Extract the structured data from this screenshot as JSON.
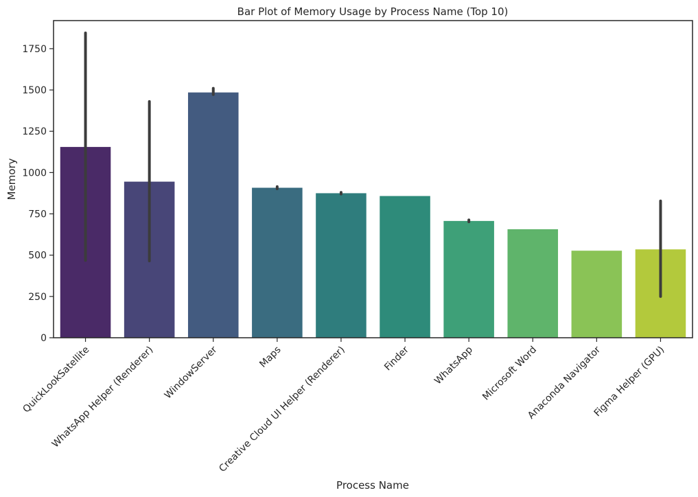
{
  "chart_data": {
    "type": "bar",
    "title": "Bar Plot of Memory Usage by Process Name (Top 10)",
    "xlabel": "Process Name",
    "ylabel": "Memory",
    "categories": [
      "QuickLookSatellite",
      "WhatsApp Helper (Renderer)",
      "WindowServer",
      "Maps",
      "Creative Cloud UI Helper (Renderer)",
      "Finder",
      "WhatsApp",
      "Microsoft Word",
      "Anaconda Navigator",
      "Figma Helper (GPU)"
    ],
    "values": [
      1155,
      945,
      1485,
      908,
      875,
      858,
      707,
      657,
      527,
      535
    ],
    "error_bars": [
      [
        468,
        1845
      ],
      [
        465,
        1430
      ],
      [
        1472,
        1510
      ],
      [
        902,
        915
      ],
      [
        870,
        880
      ],
      null,
      [
        702,
        713
      ],
      null,
      null,
      [
        250,
        828
      ]
    ],
    "colors": [
      "#4a2a67",
      "#484678",
      "#435b80",
      "#3a6c80",
      "#2f7d7d",
      "#2e8b7a",
      "#3ea078",
      "#5fb46b",
      "#8ac356",
      "#b3c93c"
    ],
    "error_color": "#3c3c3c",
    "ylim": [
      0,
      1920
    ],
    "yticks": [
      0,
      250,
      500,
      750,
      1000,
      1250,
      1500,
      1750
    ],
    "grid": false,
    "legend": "none"
  }
}
